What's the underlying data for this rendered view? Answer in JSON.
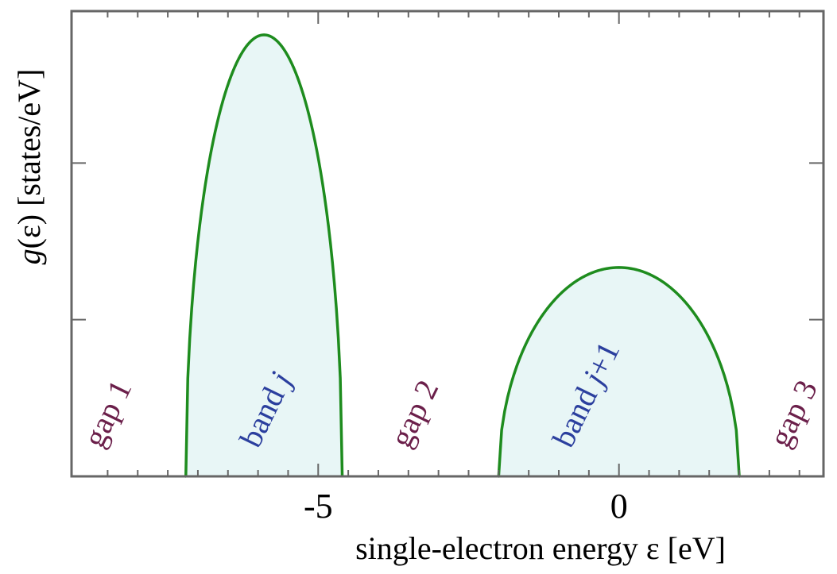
{
  "chart_data": {
    "type": "area",
    "title": "",
    "xlabel": "single-electron energy  ε   [eV]",
    "ylabel_italic": "g",
    "ylabel": "(ε)    [states/eV]",
    "xlim": [
      -9.1,
      3.4
    ],
    "ylim": [
      0,
      1.0
    ],
    "grid": false,
    "x_ticks": [
      {
        "value": -5,
        "label": "-5"
      },
      {
        "value": 0,
        "label": "0"
      }
    ],
    "x_minor_ticks": [
      -8.5,
      -8,
      -7.5,
      -7,
      -6.5,
      -6,
      -5.5,
      -4.5,
      -4,
      -3.5,
      -3,
      -2.5,
      -2,
      -1.5,
      -1,
      -0.5,
      0.5,
      1,
      1.5,
      2,
      2.5,
      3
    ],
    "y_ticks": [
      0.33,
      0.66
    ],
    "series": [
      {
        "band_center": -5.9,
        "band_half_width": 1.3,
        "peak": 0.93,
        "x_start": -7.2,
        "x_end": -4.6
      },
      {
        "band_center": 0.0,
        "band_half_width": 2.0,
        "peak": 0.44,
        "x_start": -2.0,
        "x_end": 2.0
      }
    ],
    "annotations": [
      {
        "text": "gap 1",
        "x": -8.6,
        "y": 0.04,
        "color": "#6b1f4a"
      },
      {
        "text": "band ",
        "italic": "j",
        "x": -6.0,
        "y": 0.04,
        "color": "#2b3f9e"
      },
      {
        "text": "gap 2",
        "x": -3.5,
        "y": 0.04,
        "color": "#6b1f4a"
      },
      {
        "text": "band ",
        "italic": "j",
        "suffix": "+1",
        "x": -0.8,
        "y": 0.04,
        "color": "#2b3f9e"
      },
      {
        "text": "gap 3",
        "x": 2.8,
        "y": 0.04,
        "color": "#6b1f4a"
      }
    ],
    "colors": {
      "curve": "#1e8c1e",
      "fill": "#e8f6f6",
      "frame": "#666666"
    }
  }
}
